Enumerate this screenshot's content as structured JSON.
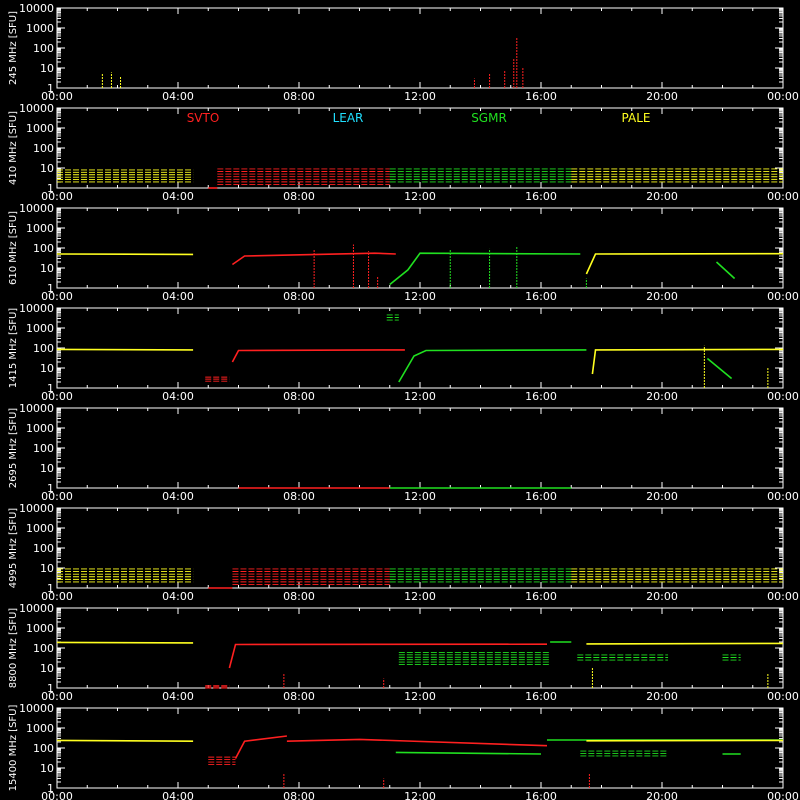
{
  "chart_data": {
    "type": "scatter",
    "x_ticks": [
      "00:00",
      "04:00",
      "08:00",
      "12:00",
      "16:00",
      "20:00",
      "00:00"
    ],
    "x_range_hours": [
      0,
      24
    ],
    "y_scale": "log",
    "y_range": [
      1,
      10000
    ],
    "y_ticks": [
      "1",
      "10",
      "100",
      "1000",
      "10000"
    ],
    "y_unit": "[SFU]",
    "colors": {
      "SVTO": "#ff2020",
      "LEAR": "#20e0ff",
      "SGMR": "#20e020",
      "PALE": "#ffff20",
      "axes": "#ffffff",
      "background": "#000000"
    },
    "stations": [
      {
        "name": "SVTO",
        "color": "#ff2020"
      },
      {
        "name": "LEAR",
        "color": "#20e0ff"
      },
      {
        "name": "SGMR",
        "color": "#20e020"
      },
      {
        "name": "PALE",
        "color": "#ffff20"
      }
    ],
    "legend_panel": 1,
    "panels": [
      {
        "frequency": "245 MHz",
        "series": [
          {
            "station": "PALE",
            "style": "scatter",
            "t": [
              1.5,
              1.8,
              2.1
            ],
            "y": [
              5,
              6,
              4
            ]
          },
          {
            "station": "SVTO",
            "style": "scatter",
            "t": [
              13.8,
              14.3,
              14.8,
              15.1,
              15.2,
              15.4
            ],
            "y": [
              3,
              5,
              8,
              30,
              350,
              10
            ]
          }
        ]
      },
      {
        "frequency": "410 MHz",
        "series": [
          {
            "station": "PALE",
            "style": "band",
            "t": [
              0,
              4.5
            ],
            "low": 2,
            "high": 8
          },
          {
            "station": "SVTO",
            "style": "line",
            "t": [
              5.0,
              5.3
            ],
            "y": [
              1,
              1
            ]
          },
          {
            "station": "SVTO",
            "style": "band",
            "t": [
              5.3,
              11.0
            ],
            "low": 1.5,
            "high": 9
          },
          {
            "station": "SGMR",
            "style": "band",
            "t": [
              11.0,
              17.0
            ],
            "low": 2,
            "high": 9
          },
          {
            "station": "PALE",
            "style": "band",
            "t": [
              17.0,
              24.0
            ],
            "low": 2,
            "high": 9
          }
        ]
      },
      {
        "frequency": "610 MHz",
        "series": [
          {
            "station": "PALE",
            "style": "line",
            "t": [
              0,
              4.5
            ],
            "y": [
              50,
              48
            ]
          },
          {
            "station": "SVTO",
            "style": "line",
            "t": [
              5.8,
              6.2,
              10.5,
              11.2
            ],
            "y": [
              15,
              40,
              55,
              50
            ]
          },
          {
            "station": "SGMR",
            "style": "line",
            "t": [
              11.0,
              11.6,
              12.0,
              17.3
            ],
            "y": [
              1.5,
              8,
              55,
              50
            ]
          },
          {
            "station": "PALE",
            "style": "line",
            "t": [
              17.5,
              17.8,
              24.0
            ],
            "y": [
              5,
              50,
              52
            ]
          },
          {
            "station": "SGMR",
            "style": "line",
            "t": [
              21.8,
              22.4
            ],
            "y": [
              20,
              3
            ]
          },
          {
            "station": "SVTO",
            "style": "scatter",
            "t": [
              8.5,
              9.8,
              10.3,
              10.6
            ],
            "y": [
              80,
              150,
              70,
              4
            ]
          },
          {
            "station": "SGMR",
            "style": "scatter",
            "t": [
              13.0,
              14.3,
              15.2,
              17.5
            ],
            "y": [
              80,
              90,
              120,
              3
            ]
          }
        ]
      },
      {
        "frequency": "1415 MHz",
        "series": [
          {
            "station": "PALE",
            "style": "line",
            "t": [
              0,
              4.5
            ],
            "y": [
              85,
              80
            ]
          },
          {
            "station": "SVTO",
            "style": "band",
            "t": [
              4.9,
              5.7
            ],
            "low": 2.2,
            "high": 3.5
          },
          {
            "station": "SVTO",
            "style": "line",
            "t": [
              5.8,
              6.0,
              11.5
            ],
            "y": [
              20,
              75,
              80
            ]
          },
          {
            "station": "SGMR",
            "style": "line",
            "t": [
              11.3,
              11.8,
              12.2,
              17.5
            ],
            "y": [
              2,
              40,
              75,
              80
            ]
          },
          {
            "station": "SGMR",
            "style": "band",
            "t": [
              10.9,
              11.3
            ],
            "low": 2500,
            "high": 4500
          },
          {
            "station": "PALE",
            "style": "line",
            "t": [
              17.7,
              17.8,
              24.0
            ],
            "y": [
              5,
              80,
              85
            ]
          },
          {
            "station": "SGMR",
            "style": "line",
            "t": [
              21.5,
              22.3
            ],
            "y": [
              30,
              3
            ]
          },
          {
            "station": "PALE",
            "style": "scatter",
            "t": [
              21.4,
              23.5
            ],
            "y": [
              130,
              10
            ]
          }
        ]
      },
      {
        "frequency": "2695 MHz",
        "series": [
          {
            "station": "SVTO",
            "style": "line",
            "t": [
              6.0,
              11.0
            ],
            "y": [
              1,
              1
            ]
          },
          {
            "station": "SGMR",
            "style": "line",
            "t": [
              11.0,
              17.0
            ],
            "y": [
              1,
              1
            ]
          }
        ]
      },
      {
        "frequency": "4995 MHz",
        "series": [
          {
            "station": "PALE",
            "style": "band",
            "t": [
              0,
              4.5
            ],
            "low": 2,
            "high": 9
          },
          {
            "station": "SVTO",
            "style": "line",
            "t": [
              5.0,
              5.8
            ],
            "y": [
              1,
              1
            ]
          },
          {
            "station": "SVTO",
            "style": "band",
            "t": [
              5.8,
              11.0
            ],
            "low": 1.5,
            "high": 9
          },
          {
            "station": "SGMR",
            "style": "band",
            "t": [
              11.0,
              17.0
            ],
            "low": 2,
            "high": 9
          },
          {
            "station": "PALE",
            "style": "band",
            "t": [
              17.0,
              24.0
            ],
            "low": 2,
            "high": 9
          }
        ]
      },
      {
        "frequency": "8800 MHz",
        "series": [
          {
            "station": "PALE",
            "style": "line",
            "t": [
              0,
              4.5
            ],
            "y": [
              190,
              180
            ]
          },
          {
            "station": "SVTO",
            "style": "band",
            "t": [
              4.9,
              5.7
            ],
            "low": 1,
            "high": 1.3
          },
          {
            "station": "SVTO",
            "style": "line",
            "t": [
              5.7,
              5.9,
              16.2
            ],
            "y": [
              10,
              150,
              155
            ]
          },
          {
            "station": "SGMR",
            "style": "band",
            "t": [
              11.3,
              16.3
            ],
            "low": 15,
            "high": 60
          },
          {
            "station": "SGMR",
            "style": "line",
            "t": [
              16.3,
              17.0
            ],
            "y": [
              200,
              200
            ]
          },
          {
            "station": "PALE",
            "style": "line",
            "t": [
              17.5,
              24.0
            ],
            "y": [
              160,
              170
            ]
          },
          {
            "station": "SGMR",
            "style": "band",
            "t": [
              17.2,
              20.2
            ],
            "low": 25,
            "high": 45
          },
          {
            "station": "SGMR",
            "style": "band",
            "t": [
              22.0,
              22.6
            ],
            "low": 25,
            "high": 45
          },
          {
            "station": "SVTO",
            "style": "scatter",
            "t": [
              7.5,
              10.8
            ],
            "y": [
              5,
              3
            ]
          },
          {
            "station": "PALE",
            "style": "scatter",
            "t": [
              17.7,
              23.5
            ],
            "y": [
              10,
              5
            ]
          }
        ]
      },
      {
        "frequency": "15400 MHz",
        "series": [
          {
            "station": "PALE",
            "style": "line",
            "t": [
              0,
              4.5
            ],
            "y": [
              240,
              220
            ]
          },
          {
            "station": "SVTO",
            "style": "band",
            "t": [
              5.0,
              5.9
            ],
            "low": 15,
            "high": 35
          },
          {
            "station": "SVTO",
            "style": "line",
            "t": [
              5.9,
              6.2,
              7.6
            ],
            "y": [
              30,
              220,
              400
            ]
          },
          {
            "station": "SVTO",
            "style": "line",
            "t": [
              7.6,
              10.0,
              16.2
            ],
            "y": [
              220,
              270,
              130
            ]
          },
          {
            "station": "SGMR",
            "style": "line",
            "t": [
              11.2,
              16.0
            ],
            "y": [
              60,
              50
            ]
          },
          {
            "station": "SGMR",
            "style": "line",
            "t": [
              16.2,
              24.0
            ],
            "y": [
              250,
              250
            ]
          },
          {
            "station": "SGMR",
            "style": "band",
            "t": [
              17.3,
              20.2
            ],
            "low": 40,
            "high": 70
          },
          {
            "station": "SGMR",
            "style": "line",
            "t": [
              22.0,
              22.6
            ],
            "y": [
              50,
              50
            ]
          },
          {
            "station": "PALE",
            "style": "line",
            "t": [
              17.5,
              24.0
            ],
            "y": [
              230,
              240
            ]
          },
          {
            "station": "SVTO",
            "style": "scatter",
            "t": [
              7.5,
              10.8,
              17.6
            ],
            "y": [
              5,
              3,
              5
            ]
          }
        ]
      }
    ]
  }
}
